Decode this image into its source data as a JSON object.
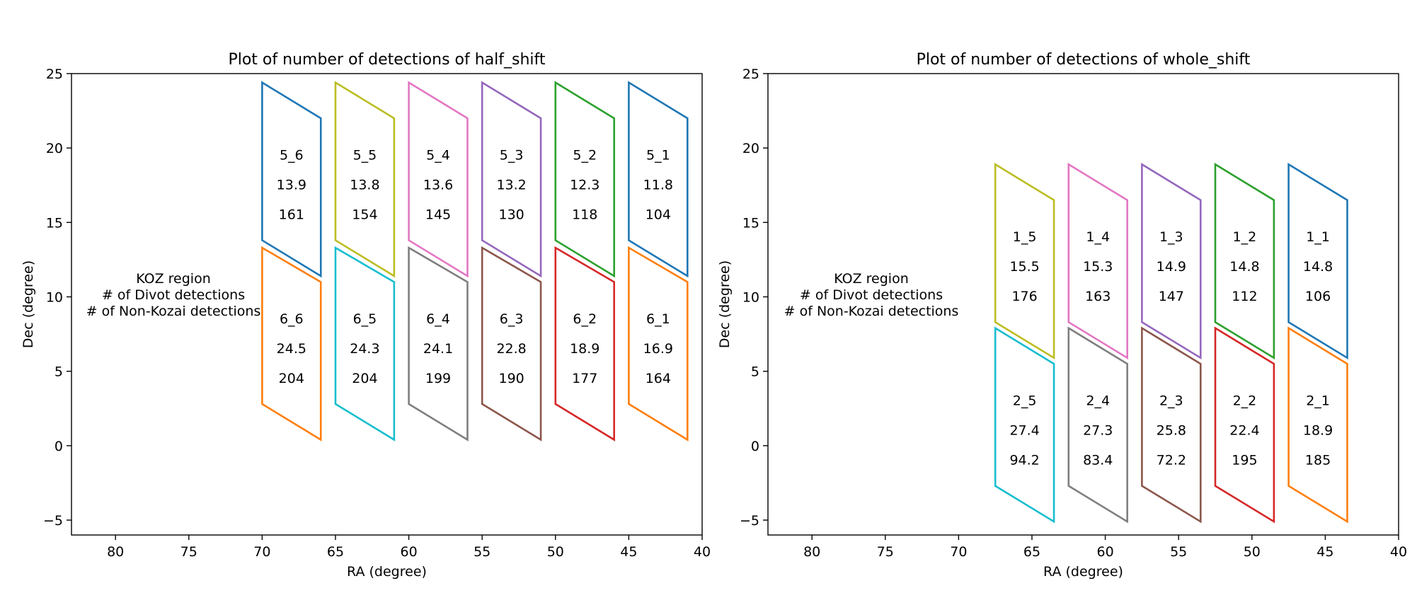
{
  "chart_data": [
    {
      "type": "polygon-map",
      "title": "Plot of number of detections of half_shift",
      "xlabel": "RA (degree)",
      "ylabel": "Dec (degree)",
      "xlim": [
        83,
        40
      ],
      "ylim": [
        -6,
        25
      ],
      "x_inverted": true,
      "xticks": [
        80,
        75,
        70,
        65,
        60,
        55,
        50,
        45,
        40
      ],
      "xtick_labels": [
        "80",
        "75",
        "70",
        "65",
        "60",
        "55",
        "50",
        "45",
        "40"
      ],
      "yticks": [
        -5,
        0,
        5,
        10,
        15,
        20,
        25
      ],
      "ytick_labels": [
        "−5",
        "0",
        "5",
        "10",
        "15",
        "20",
        "25"
      ],
      "legend_lines": [
        "KOZ region",
        "# of Divot detections",
        "# of Non-Kozai detections"
      ],
      "legend_position": "left-middle",
      "regions": [
        {
          "name": "5_1",
          "divot": "11.8",
          "nonkozai": "104",
          "color": "#1f77b4",
          "x_left": 45,
          "x_right": 41,
          "y_top_left": 24.4,
          "y_top_right": 22.0,
          "y_bottom_left": 13.8,
          "y_bottom_right": 11.4
        },
        {
          "name": "5_2",
          "divot": "12.3",
          "nonkozai": "118",
          "color": "#2ca02c",
          "x_left": 50,
          "x_right": 46,
          "y_top_left": 24.4,
          "y_top_right": 22.0,
          "y_bottom_left": 13.8,
          "y_bottom_right": 11.4
        },
        {
          "name": "5_3",
          "divot": "13.2",
          "nonkozai": "130",
          "color": "#9467bd",
          "x_left": 55,
          "x_right": 51,
          "y_top_left": 24.4,
          "y_top_right": 22.0,
          "y_bottom_left": 13.8,
          "y_bottom_right": 11.4
        },
        {
          "name": "5_4",
          "divot": "13.6",
          "nonkozai": "145",
          "color": "#e377c2",
          "x_left": 60,
          "x_right": 56,
          "y_top_left": 24.4,
          "y_top_right": 22.0,
          "y_bottom_left": 13.8,
          "y_bottom_right": 11.4
        },
        {
          "name": "5_5",
          "divot": "13.8",
          "nonkozai": "154",
          "color": "#bcbd22",
          "x_left": 65,
          "x_right": 61,
          "y_top_left": 24.4,
          "y_top_right": 22.0,
          "y_bottom_left": 13.8,
          "y_bottom_right": 11.4
        },
        {
          "name": "5_6",
          "divot": "13.9",
          "nonkozai": "161",
          "color": "#1f77b4",
          "x_left": 70,
          "x_right": 66,
          "y_top_left": 24.4,
          "y_top_right": 22.0,
          "y_bottom_left": 13.8,
          "y_bottom_right": 11.4
        },
        {
          "name": "6_1",
          "divot": "16.9",
          "nonkozai": "164",
          "color": "#ff7f0e",
          "x_left": 45,
          "x_right": 41,
          "y_top_left": 13.3,
          "y_top_right": 11.0,
          "y_bottom_left": 2.8,
          "y_bottom_right": 0.4
        },
        {
          "name": "6_2",
          "divot": "18.9",
          "nonkozai": "177",
          "color": "#d62728",
          "x_left": 50,
          "x_right": 46,
          "y_top_left": 13.3,
          "y_top_right": 11.0,
          "y_bottom_left": 2.8,
          "y_bottom_right": 0.4
        },
        {
          "name": "6_3",
          "divot": "22.8",
          "nonkozai": "190",
          "color": "#8c564b",
          "x_left": 55,
          "x_right": 51,
          "y_top_left": 13.3,
          "y_top_right": 11.0,
          "y_bottom_left": 2.8,
          "y_bottom_right": 0.4
        },
        {
          "name": "6_4",
          "divot": "24.1",
          "nonkozai": "199",
          "color": "#7f7f7f",
          "x_left": 60,
          "x_right": 56,
          "y_top_left": 13.3,
          "y_top_right": 11.0,
          "y_bottom_left": 2.8,
          "y_bottom_right": 0.4
        },
        {
          "name": "6_5",
          "divot": "24.3",
          "nonkozai": "204",
          "color": "#17becf",
          "x_left": 65,
          "x_right": 61,
          "y_top_left": 13.3,
          "y_top_right": 11.0,
          "y_bottom_left": 2.8,
          "y_bottom_right": 0.4
        },
        {
          "name": "6_6",
          "divot": "24.5",
          "nonkozai": "204",
          "color": "#ff7f0e",
          "x_left": 70,
          "x_right": 66,
          "y_top_left": 13.3,
          "y_top_right": 11.0,
          "y_bottom_left": 2.8,
          "y_bottom_right": 0.4
        }
      ]
    },
    {
      "type": "polygon-map",
      "title": "Plot of number of detections of whole_shift",
      "xlabel": "RA (degree)",
      "ylabel": "Dec (degree)",
      "xlim": [
        83,
        40
      ],
      "ylim": [
        -6,
        25
      ],
      "x_inverted": true,
      "xticks": [
        80,
        75,
        70,
        65,
        60,
        55,
        50,
        45,
        40
      ],
      "xtick_labels": [
        "80",
        "75",
        "70",
        "65",
        "60",
        "55",
        "50",
        "45",
        "40"
      ],
      "yticks": [
        -5,
        0,
        5,
        10,
        15,
        20,
        25
      ],
      "ytick_labels": [
        "−5",
        "0",
        "5",
        "10",
        "15",
        "20",
        "25"
      ],
      "legend_lines": [
        "KOZ region",
        "# of Divot detections",
        "# of Non-Kozai detections"
      ],
      "legend_position": "left-middle",
      "regions": [
        {
          "name": "1_1",
          "divot": "14.8",
          "nonkozai": "106",
          "color": "#1f77b4",
          "x_left": 47.5,
          "x_right": 43.5,
          "y_top_left": 18.9,
          "y_top_right": 16.5,
          "y_bottom_left": 8.3,
          "y_bottom_right": 5.9
        },
        {
          "name": "1_2",
          "divot": "14.8",
          "nonkozai": "112",
          "color": "#2ca02c",
          "x_left": 52.5,
          "x_right": 48.5,
          "y_top_left": 18.9,
          "y_top_right": 16.5,
          "y_bottom_left": 8.3,
          "y_bottom_right": 5.9
        },
        {
          "name": "1_3",
          "divot": "14.9",
          "nonkozai": "147",
          "color": "#9467bd",
          "x_left": 57.5,
          "x_right": 53.5,
          "y_top_left": 18.9,
          "y_top_right": 16.5,
          "y_bottom_left": 8.3,
          "y_bottom_right": 5.9
        },
        {
          "name": "1_4",
          "divot": "15.3",
          "nonkozai": "163",
          "color": "#e377c2",
          "x_left": 62.5,
          "x_right": 58.5,
          "y_top_left": 18.9,
          "y_top_right": 16.5,
          "y_bottom_left": 8.3,
          "y_bottom_right": 5.9
        },
        {
          "name": "1_5",
          "divot": "15.5",
          "nonkozai": "176",
          "color": "#bcbd22",
          "x_left": 67.5,
          "x_right": 63.5,
          "y_top_left": 18.9,
          "y_top_right": 16.5,
          "y_bottom_left": 8.3,
          "y_bottom_right": 5.9
        },
        {
          "name": "2_1",
          "divot": "18.9",
          "nonkozai": "185",
          "color": "#ff7f0e",
          "x_left": 47.5,
          "x_right": 43.5,
          "y_top_left": 7.9,
          "y_top_right": 5.5,
          "y_bottom_left": -2.7,
          "y_bottom_right": -5.1
        },
        {
          "name": "2_2",
          "divot": "22.4",
          "nonkozai": "195",
          "color": "#d62728",
          "x_left": 52.5,
          "x_right": 48.5,
          "y_top_left": 7.9,
          "y_top_right": 5.5,
          "y_bottom_left": -2.7,
          "y_bottom_right": -5.1
        },
        {
          "name": "2_3",
          "divot": "25.8",
          "nonkozai": "72.2",
          "color": "#8c564b",
          "x_left": 57.5,
          "x_right": 53.5,
          "y_top_left": 7.9,
          "y_top_right": 5.5,
          "y_bottom_left": -2.7,
          "y_bottom_right": -5.1
        },
        {
          "name": "2_4",
          "divot": "27.3",
          "nonkozai": "83.4",
          "color": "#7f7f7f",
          "x_left": 62.5,
          "x_right": 58.5,
          "y_top_left": 7.9,
          "y_top_right": 5.5,
          "y_bottom_left": -2.7,
          "y_bottom_right": -5.1
        },
        {
          "name": "2_5",
          "divot": "27.4",
          "nonkozai": "94.2",
          "color": "#17becf",
          "x_left": 67.5,
          "x_right": 63.5,
          "y_top_left": 7.9,
          "y_top_right": 5.5,
          "y_bottom_left": -2.7,
          "y_bottom_right": -5.1
        }
      ]
    }
  ]
}
